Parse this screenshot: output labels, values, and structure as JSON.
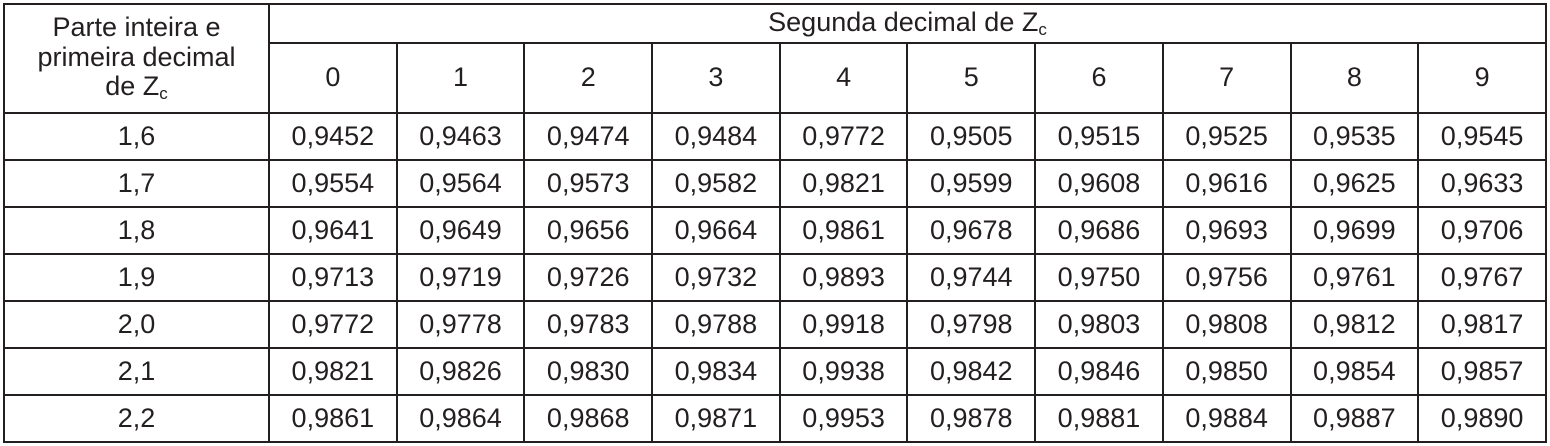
{
  "table": {
    "corner_lines": [
      "Parte inteira e",
      "primeira decimal",
      "de Z"
    ],
    "corner_sub": "c",
    "group_header": "Segunda decimal de Z",
    "group_header_sub": "c",
    "columns": [
      "0",
      "1",
      "2",
      "3",
      "4",
      "5",
      "6",
      "7",
      "8",
      "9"
    ],
    "rows": [
      {
        "label": "1,6",
        "values": [
          "0,9452",
          "0,9463",
          "0,9474",
          "0,9484",
          "0,9772",
          "0,9505",
          "0,9515",
          "0,9525",
          "0,9535",
          "0,9545"
        ]
      },
      {
        "label": "1,7",
        "values": [
          "0,9554",
          "0,9564",
          "0,9573",
          "0,9582",
          "0,9821",
          "0,9599",
          "0,9608",
          "0,9616",
          "0,9625",
          "0,9633"
        ]
      },
      {
        "label": "1,8",
        "values": [
          "0,9641",
          "0,9649",
          "0,9656",
          "0,9664",
          "0,9861",
          "0,9678",
          "0,9686",
          "0,9693",
          "0,9699",
          "0,9706"
        ]
      },
      {
        "label": "1,9",
        "values": [
          "0,9713",
          "0,9719",
          "0,9726",
          "0,9732",
          "0,9893",
          "0,9744",
          "0,9750",
          "0,9756",
          "0,9761",
          "0,9767"
        ]
      },
      {
        "label": "2,0",
        "values": [
          "0,9772",
          "0,9778",
          "0,9783",
          "0,9788",
          "0,9918",
          "0,9798",
          "0,9803",
          "0,9808",
          "0,9812",
          "0,9817"
        ]
      },
      {
        "label": "2,1",
        "values": [
          "0,9821",
          "0,9826",
          "0,9830",
          "0,9834",
          "0,9938",
          "0,9842",
          "0,9846",
          "0,9850",
          "0,9854",
          "0,9857"
        ]
      },
      {
        "label": "2,2",
        "values": [
          "0,9861",
          "0,9864",
          "0,9868",
          "0,9871",
          "0,9953",
          "0,9878",
          "0,9881",
          "0,9884",
          "0,9887",
          "0,9890"
        ]
      }
    ]
  }
}
